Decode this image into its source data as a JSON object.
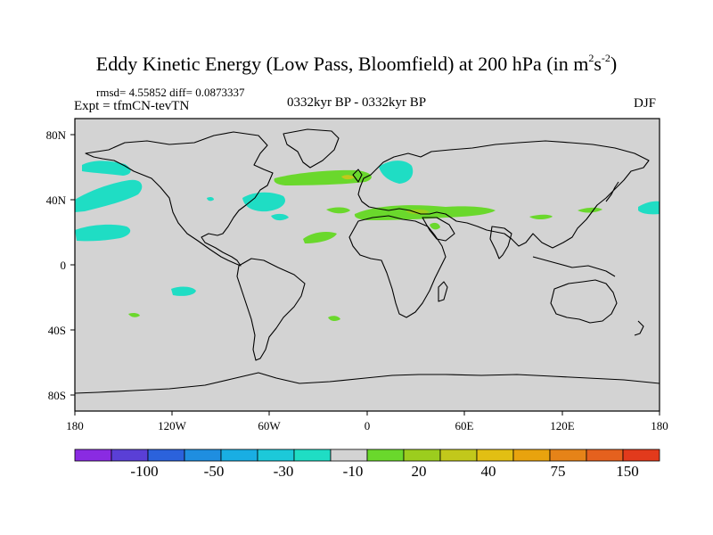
{
  "header": {
    "title_main": "Eddy Kinetic Energy (Low Pass, Bloomfield) at 200 hPa (in m",
    "title_sup1": "2",
    "title_mid": "s",
    "title_sup2": "-2",
    "title_end": ")",
    "rmsd": "rmsd= 4.55852 diff= 0.0873337",
    "expt": "Expt = tfmCN-tevTN",
    "center": "0332kyr BP - 0332kyr BP",
    "season": "DJF"
  },
  "map": {
    "projection": "cylindrical-equidistant",
    "lon_range": [
      -180,
      180
    ],
    "lat_range": [
      -90,
      90
    ],
    "background_color": "#d3d3d3",
    "x_ticks": [
      "180",
      "120W",
      "60W",
      "0",
      "60E",
      "120E",
      "180"
    ],
    "y_ticks": [
      "80N",
      "40N",
      "0",
      "40S",
      "80S"
    ]
  },
  "colorbar": {
    "colors": [
      "#8a2be2",
      "#5a3fd6",
      "#2b62dc",
      "#1f8ee0",
      "#19aee3",
      "#1cc9d9",
      "#1fddc4",
      "#d3d3d3",
      "#6ad82c",
      "#9ccd1e",
      "#c2c81b",
      "#e2bf13",
      "#e8a30e",
      "#e68318",
      "#e5611e",
      "#e23a1c"
    ],
    "labels": [
      "-100",
      "-50",
      "-30",
      "-10",
      "20",
      "40",
      "75",
      "150"
    ]
  }
}
